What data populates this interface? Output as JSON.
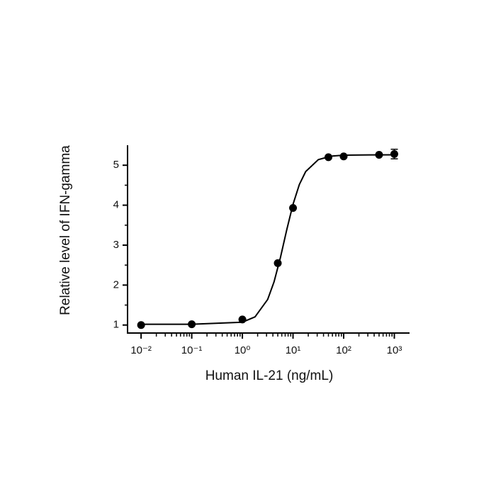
{
  "chart_data": {
    "type": "scatter",
    "x_label": "Human IL-21 (ng/mL)",
    "y_label": "Relative level of IFN-gamma",
    "x_scale": "log",
    "xlim": [
      0.0054,
      2000
    ],
    "ylim": [
      0.8,
      5.5
    ],
    "xticks": [
      {
        "value": 0.01,
        "label": "10⁻²"
      },
      {
        "value": 0.1,
        "label": "10⁻¹"
      },
      {
        "value": 1,
        "label": "10⁰"
      },
      {
        "value": 10,
        "label": "10¹"
      },
      {
        "value": 100,
        "label": "10²"
      },
      {
        "value": 1000,
        "label": "10³"
      }
    ],
    "xminorticks": [
      0.02,
      0.03,
      0.04,
      0.05,
      0.06,
      0.07,
      0.08,
      0.09,
      0.2,
      0.3,
      0.4,
      0.5,
      0.6,
      0.7,
      0.8,
      0.9,
      2,
      3,
      4,
      5,
      6,
      7,
      8,
      9,
      20,
      30,
      40,
      50,
      60,
      70,
      80,
      90,
      200,
      300,
      400,
      500,
      600,
      700,
      800,
      900
    ],
    "yticks": [
      1,
      2,
      3,
      4,
      5
    ],
    "yminorticks": [
      1.5,
      2.5,
      3.5,
      4.5
    ],
    "grid": false,
    "color": "#000000",
    "series": [
      {
        "kind": "points",
        "x": [
          0.01,
          0.1,
          1,
          5,
          10,
          50,
          100,
          500,
          1000
        ],
        "values": [
          1.0,
          1.02,
          1.14,
          2.55,
          3.93,
          5.2,
          5.22,
          5.26,
          5.28
        ],
        "errors": [
          null,
          null,
          null,
          null,
          null,
          null,
          null,
          null,
          0.12
        ]
      },
      {
        "kind": "fit",
        "x": [
          0.01,
          0.1,
          1,
          1.778,
          3.162,
          4.217,
          5.623,
          7.499,
          10,
          13.34,
          17.78,
          31.62,
          56.23,
          100,
          316.2,
          1000
        ],
        "values": [
          1.02,
          1.02,
          1.071,
          1.205,
          1.642,
          2.08,
          2.683,
          3.378,
          4.023,
          4.518,
          4.841,
          5.14,
          5.227,
          5.251,
          5.259,
          5.26
        ]
      }
    ]
  }
}
